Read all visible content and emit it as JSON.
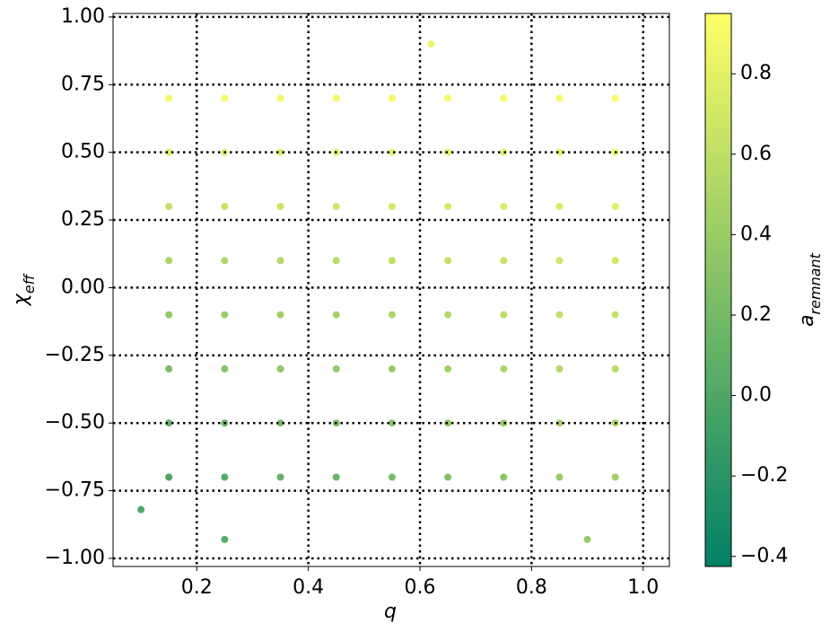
{
  "chart_data": {
    "type": "scatter",
    "x_label": "q",
    "y_label": "χ",
    "y_label_sub": "eff",
    "colorbar_label": "a",
    "colorbar_label_sub": "remnant",
    "colormap": "summer",
    "grid": true,
    "xlim": [
      0.05,
      1.047
    ],
    "ylim": [
      -1.03,
      1.013
    ],
    "clim": [
      -0.425,
      0.95
    ],
    "xticks": [
      0.2,
      0.4,
      0.6,
      0.8,
      {
        "value": 1,
        "label": "1.0"
      }
    ],
    "yticks": [
      {
        "value": -1,
        "label": "−1.00"
      },
      {
        "value": -0.75,
        "label": "−0.75"
      },
      {
        "value": -0.5,
        "label": "−0.50"
      },
      {
        "value": -0.25,
        "label": "−0.25"
      },
      {
        "value": 0,
        "label": "0.00"
      },
      {
        "value": 0.25,
        "label": "0.25"
      },
      {
        "value": 0.5,
        "label": "0.50"
      },
      {
        "value": 0.75,
        "label": "0.75"
      },
      {
        "value": 1,
        "label": "1.00"
      }
    ],
    "cticks": [
      {
        "value": -0.4,
        "label": "−0.4"
      },
      {
        "value": -0.2,
        "label": "−0.2"
      },
      {
        "value": 0,
        "label": "0.0"
      },
      0.2,
      0.4,
      0.6,
      0.8
    ],
    "x": [
      0.15,
      0.25,
      0.35,
      0.45,
      0.55,
      0.65,
      0.75,
      0.85,
      0.95,
      0.15,
      0.25,
      0.35,
      0.45,
      0.55,
      0.65,
      0.75,
      0.85,
      0.95,
      0.15,
      0.25,
      0.35,
      0.45,
      0.55,
      0.65,
      0.75,
      0.85,
      0.95,
      0.15,
      0.25,
      0.35,
      0.45,
      0.55,
      0.65,
      0.75,
      0.85,
      0.95,
      0.15,
      0.25,
      0.35,
      0.45,
      0.55,
      0.65,
      0.75,
      0.85,
      0.95,
      0.15,
      0.25,
      0.35,
      0.45,
      0.55,
      0.65,
      0.75,
      0.85,
      0.95,
      0.15,
      0.25,
      0.35,
      0.45,
      0.55,
      0.65,
      0.75,
      0.85,
      0.95,
      0.15,
      0.25,
      0.35,
      0.45,
      0.55,
      0.65,
      0.75,
      0.85,
      0.95,
      0.25,
      0.9,
      0.62,
      0.1
    ],
    "values": [
      -0.7,
      -0.7,
      -0.7,
      -0.7,
      -0.7,
      -0.7,
      -0.7,
      -0.7,
      -0.7,
      -0.5,
      -0.5,
      -0.5,
      -0.5,
      -0.5,
      -0.5,
      -0.5,
      -0.5,
      -0.5,
      -0.3,
      -0.3,
      -0.3,
      -0.3,
      -0.3,
      -0.3,
      -0.3,
      -0.3,
      -0.3,
      -0.1,
      -0.1,
      -0.1,
      -0.1,
      -0.1,
      -0.1,
      -0.1,
      -0.1,
      -0.1,
      0.1,
      0.1,
      0.1,
      0.1,
      0.1,
      0.1,
      0.1,
      0.1,
      0.1,
      0.3,
      0.3,
      0.3,
      0.3,
      0.3,
      0.3,
      0.3,
      0.3,
      0.3,
      0.5,
      0.5,
      0.5,
      0.5,
      0.5,
      0.5,
      0.5,
      0.5,
      0.5,
      0.7,
      0.7,
      0.7,
      0.7,
      0.7,
      0.7,
      0.7,
      0.7,
      0.7,
      -0.93,
      -0.93,
      0.9,
      -0.82
    ],
    "color_values": [
      -0.01,
      0.05,
      0.1,
      0.16,
      0.22,
      0.28,
      0.34,
      0.39,
      0.45,
      0.12,
      0.17,
      0.22,
      0.27,
      0.32,
      0.37,
      0.42,
      0.47,
      0.52,
      0.24,
      0.29,
      0.33,
      0.37,
      0.41,
      0.45,
      0.5,
      0.54,
      0.58,
      0.37,
      0.41,
      0.44,
      0.47,
      0.51,
      0.54,
      0.58,
      0.61,
      0.64,
      0.5,
      0.53,
      0.55,
      0.58,
      0.6,
      0.63,
      0.66,
      0.68,
      0.71,
      0.63,
      0.65,
      0.66,
      0.68,
      0.7,
      0.72,
      0.74,
      0.75,
      0.77,
      0.76,
      0.77,
      0.78,
      0.79,
      0.8,
      0.81,
      0.82,
      0.83,
      0.84,
      0.88,
      0.89,
      0.89,
      0.89,
      0.89,
      0.89,
      0.9,
      0.9,
      0.9,
      0.05,
      0.4,
      0.85,
      0.0
    ]
  }
}
